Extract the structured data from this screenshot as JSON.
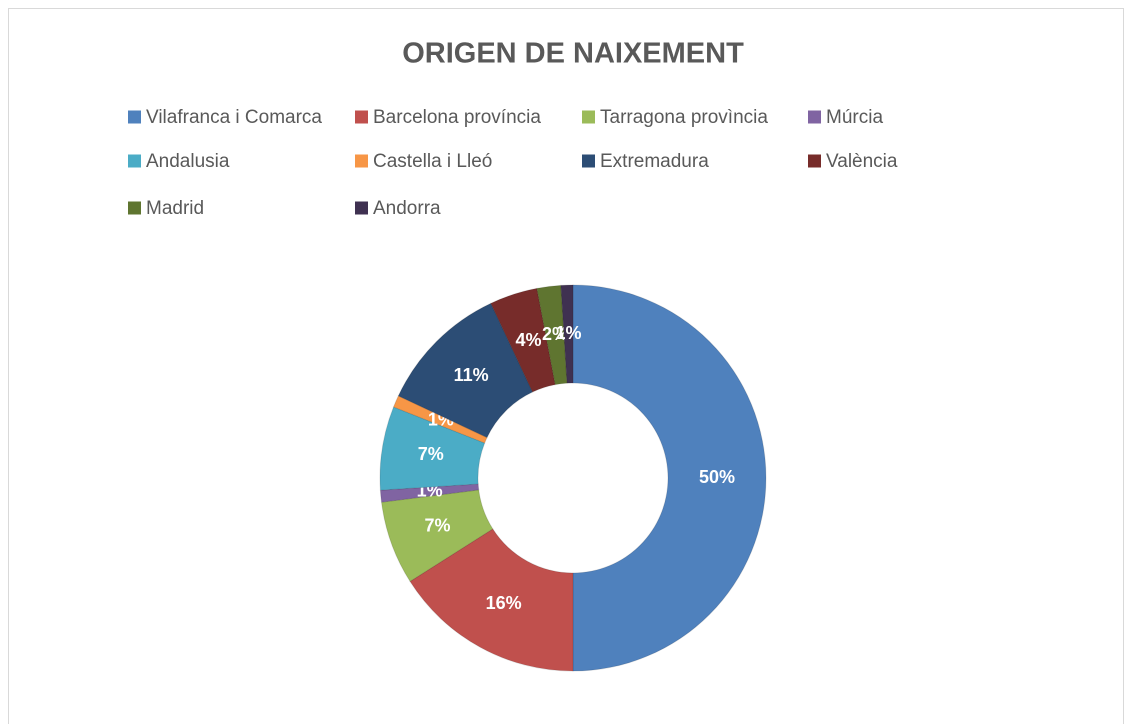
{
  "chart_data": {
    "type": "doughnut",
    "title": "ORIGEN DE NAIXEMENT",
    "categories": [
      "Vilafranca i Comarca",
      "Barcelona província",
      "Tarragona provìncia",
      "Múrcia",
      "Andalusia",
      "Castella i Lleó",
      "Extremadura",
      "València",
      "Madrid",
      "Andorra"
    ],
    "values": [
      50,
      16,
      7,
      1,
      7,
      1,
      11,
      4,
      2,
      1
    ],
    "value_labels": [
      "50%",
      "16%",
      "7%",
      "1%",
      "7%",
      "1%",
      "11%",
      "4%",
      "2%",
      "1%"
    ],
    "colors": [
      "#4f81bd",
      "#c0504d",
      "#9bbb59",
      "#8064a2",
      "#4bacc6",
      "#f79646",
      "#2c4d75",
      "#772c2a",
      "#5f7530",
      "#3f3151"
    ],
    "legend": "top"
  }
}
